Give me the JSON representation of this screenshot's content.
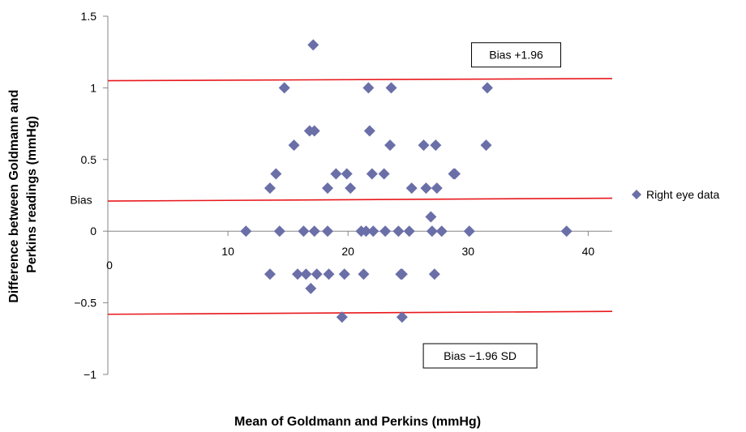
{
  "chart_data": {
    "type": "scatter",
    "xlabel": "Mean of Goldmann and Perkins (mmHg)",
    "ylabel_lines": [
      "Difference between Goldmann and",
      "Perkins readings (mmHg)"
    ],
    "xlim": [
      0,
      42
    ],
    "ylim": [
      -1,
      1.5
    ],
    "x_ticks": [
      {
        "value": 0,
        "label": "0"
      },
      {
        "value": 10,
        "label": "10"
      },
      {
        "value": 20,
        "label": "20"
      },
      {
        "value": 30,
        "label": "30"
      },
      {
        "value": 40,
        "label": "40"
      }
    ],
    "y_ticks": [
      {
        "value": 1.5,
        "label": "1.5"
      },
      {
        "value": 1,
        "label": "1"
      },
      {
        "value": 0.5,
        "label": "0.5"
      },
      {
        "value": 0,
        "label": "0"
      },
      {
        "value": -0.5,
        "label": "−0.5"
      },
      {
        "value": -1,
        "label": "−1"
      }
    ],
    "grid": false,
    "legend_position": "right",
    "marker_color": "#6b6fa8",
    "line_color": "#e8181c",
    "reference_lines": [
      {
        "name": "upper-limit",
        "y_left": 1.05,
        "y_right": 1.065
      },
      {
        "name": "bias",
        "y_left": 0.21,
        "y_right": 0.23
      },
      {
        "name": "lower-limit",
        "y_left": -0.58,
        "y_right": -0.56
      }
    ],
    "annotations": [
      {
        "name": "upper-label",
        "text": "Bias +1.96",
        "x": 34,
        "y": 1.23
      },
      {
        "name": "bias-label",
        "text": "Bias",
        "x": -2.5,
        "y": 0.22
      },
      {
        "name": "lower-label",
        "text": "Bias −1.96 SD",
        "x": 31,
        "y": -0.87
      }
    ],
    "series": [
      {
        "name": "Right eye data",
        "points": [
          [
            11.5,
            0
          ],
          [
            13.5,
            0.3
          ],
          [
            13.5,
            -0.3
          ],
          [
            14.0,
            0.4
          ],
          [
            14.3,
            0
          ],
          [
            14.7,
            1.0
          ],
          [
            15.5,
            0.6
          ],
          [
            15.8,
            -0.3
          ],
          [
            16.3,
            0
          ],
          [
            16.5,
            -0.3
          ],
          [
            16.8,
            0.7
          ],
          [
            16.9,
            -0.4
          ],
          [
            17.1,
            1.3
          ],
          [
            17.2,
            0.7
          ],
          [
            17.2,
            0
          ],
          [
            17.4,
            -0.3
          ],
          [
            18.3,
            0.3
          ],
          [
            18.3,
            0
          ],
          [
            18.4,
            -0.3
          ],
          [
            19.0,
            0.4
          ],
          [
            19.5,
            -0.6
          ],
          [
            19.7,
            -0.3
          ],
          [
            19.9,
            0.4
          ],
          [
            20.2,
            0.3
          ],
          [
            21.1,
            0
          ],
          [
            21.3,
            -0.3
          ],
          [
            21.5,
            0
          ],
          [
            21.7,
            1.0
          ],
          [
            21.8,
            0.7
          ],
          [
            22.0,
            0.4
          ],
          [
            22.1,
            0
          ],
          [
            23.0,
            0.4
          ],
          [
            23.1,
            0
          ],
          [
            23.5,
            0.6
          ],
          [
            23.6,
            1.0
          ],
          [
            24.2,
            0
          ],
          [
            24.4,
            -0.3
          ],
          [
            24.5,
            -0.3
          ],
          [
            24.5,
            -0.6
          ],
          [
            25.1,
            0
          ],
          [
            25.3,
            0.3
          ],
          [
            26.3,
            0.6
          ],
          [
            26.5,
            0.3
          ],
          [
            26.9,
            0.1
          ],
          [
            27.0,
            0
          ],
          [
            27.2,
            -0.3
          ],
          [
            27.3,
            0.6
          ],
          [
            27.4,
            0.3
          ],
          [
            27.8,
            0
          ],
          [
            28.8,
            0.4
          ],
          [
            28.9,
            0.4
          ],
          [
            30.1,
            0
          ],
          [
            31.5,
            0.6
          ],
          [
            31.6,
            1.0
          ],
          [
            38.2,
            0
          ]
        ]
      }
    ]
  }
}
